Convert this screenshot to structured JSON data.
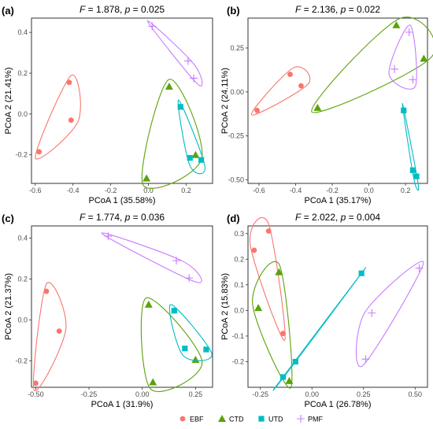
{
  "colors": {
    "EBF": "#F8766D",
    "CTD": "#5BA20A",
    "UTD": "#00BCC4",
    "PMF": "#C77CFF"
  },
  "legend": [
    {
      "group": "EBF",
      "label": "EBF",
      "shape": "circle"
    },
    {
      "group": "CTD",
      "label": "CTD",
      "shape": "triangle"
    },
    {
      "group": "UTD",
      "label": "UTD",
      "shape": "square"
    },
    {
      "group": "PMF",
      "label": "PMF",
      "shape": "plus"
    }
  ],
  "chart_data": [
    {
      "type": "scatter",
      "id": "a",
      "panel_label": "(a)",
      "title_F": "1.878",
      "title_p": "0.025",
      "xlabel": "PCoA 1 (35.58%)",
      "ylabel": "PCoA 2 (21.41%)",
      "xlim": [
        -0.62,
        0.34
      ],
      "ylim": [
        -0.34,
        0.47
      ],
      "xticks": [
        -0.6,
        -0.4,
        -0.2,
        0.0,
        0.2
      ],
      "xtick_labels": [
        "-0.6",
        "-0.4",
        "-0.2",
        "0.0",
        "0.2"
      ],
      "yticks": [
        -0.2,
        0.0,
        0.2,
        0.4
      ],
      "ytick_labels": [
        "-0.2",
        "0.0",
        "0.2",
        "0.4"
      ],
      "series": [
        {
          "name": "EBF",
          "points": [
            [
              -0.58,
              -0.185
            ],
            [
              -0.42,
              0.155
            ],
            [
              -0.41,
              -0.03
            ]
          ]
        },
        {
          "name": "CTD",
          "points": [
            [
              -0.01,
              -0.315
            ],
            [
              0.11,
              0.135
            ],
            [
              0.25,
              -0.2
            ]
          ]
        },
        {
          "name": "UTD",
          "points": [
            [
              0.17,
              0.035
            ],
            [
              0.22,
              -0.215
            ],
            [
              0.28,
              -0.225
            ]
          ]
        },
        {
          "name": "PMF",
          "points": [
            [
              0.02,
              0.43
            ],
            [
              0.21,
              0.26
            ],
            [
              0.24,
              0.175
            ]
          ]
        }
      ]
    },
    {
      "type": "scatter",
      "id": "b",
      "panel_label": "(b)",
      "title_F": "2.136",
      "title_p": "0.022",
      "xlabel": "PCoA 1 (35.17%)",
      "ylabel": "PCoA 2 (24.11%)",
      "xlim": [
        -0.66,
        0.32
      ],
      "ylim": [
        -0.52,
        0.42
      ],
      "xticks": [
        -0.6,
        -0.4,
        -0.2,
        0.0,
        0.2
      ],
      "xtick_labels": [
        "-0.6",
        "-0.4",
        "-0.2",
        "0.0",
        "0.2"
      ],
      "yticks": [
        -0.5,
        -0.25,
        0.0,
        0.25
      ],
      "ytick_labels": [
        "-0.50",
        "-0.25",
        "0.00",
        "0.25"
      ],
      "series": [
        {
          "name": "EBF",
          "points": [
            [
              -0.61,
              -0.105
            ],
            [
              -0.43,
              0.1
            ],
            [
              -0.37,
              0.035
            ]
          ]
        },
        {
          "name": "CTD",
          "points": [
            [
              -0.28,
              -0.09
            ],
            [
              0.15,
              0.38
            ],
            [
              0.3,
              0.19
            ]
          ]
        },
        {
          "name": "UTD",
          "points": [
            [
              0.19,
              -0.105
            ],
            [
              0.24,
              -0.445
            ],
            [
              0.26,
              -0.48
            ]
          ]
        },
        {
          "name": "PMF",
          "points": [
            [
              0.14,
              0.13
            ],
            [
              0.22,
              0.34
            ],
            [
              0.24,
              0.07
            ]
          ]
        }
      ]
    },
    {
      "type": "scatter",
      "id": "c",
      "panel_label": "(c)",
      "title_F": "1.774",
      "title_p": "0.036",
      "xlabel": "PCoA 1 (31.9%)",
      "ylabel": "PCoA 2 (21.37%)",
      "xlim": [
        -0.52,
        0.33
      ],
      "ylim": [
        -0.33,
        0.46
      ],
      "xticks": [
        -0.5,
        -0.25,
        0.0,
        0.25
      ],
      "xtick_labels": [
        "-0.50",
        "-0.25",
        "0.00",
        "0.25"
      ],
      "yticks": [
        -0.2,
        0.0,
        0.2,
        0.4
      ],
      "ytick_labels": [
        "-0.2",
        "0.0",
        "0.2",
        "0.4"
      ],
      "series": [
        {
          "name": "EBF",
          "points": [
            [
              -0.5,
              -0.31
            ],
            [
              -0.45,
              0.14
            ],
            [
              -0.39,
              -0.055
            ]
          ]
        },
        {
          "name": "CTD",
          "points": [
            [
              0.03,
              0.075
            ],
            [
              0.05,
              -0.305
            ],
            [
              0.25,
              -0.195
            ]
          ]
        },
        {
          "name": "UTD",
          "points": [
            [
              0.15,
              0.045
            ],
            [
              0.2,
              -0.14
            ],
            [
              0.3,
              -0.145
            ]
          ]
        },
        {
          "name": "PMF",
          "points": [
            [
              -0.16,
              0.41
            ],
            [
              0.16,
              0.29
            ],
            [
              0.22,
              0.205
            ]
          ]
        }
      ]
    },
    {
      "type": "scatter",
      "id": "d",
      "panel_label": "(d)",
      "title_F": "2.022",
      "title_p": "0.004",
      "xlabel": "PCoA 1 (26.78%)",
      "ylabel": "PCoA 2 (15.83%)",
      "xlim": [
        -0.31,
        0.56
      ],
      "ylim": [
        -0.3,
        0.33
      ],
      "xticks": [
        -0.25,
        0.0,
        0.25,
        0.5
      ],
      "xtick_labels": [
        "-0.25",
        "0.00",
        "0.25",
        "0.50"
      ],
      "yticks": [
        -0.2,
        -0.1,
        0.0,
        0.1,
        0.2,
        0.3
      ],
      "ytick_labels": [
        "-0.2",
        "-0.1",
        "0.0",
        "0.1",
        "0.2",
        "0.3"
      ],
      "series": [
        {
          "name": "EBF",
          "points": [
            [
              -0.28,
              0.235
            ],
            [
              -0.21,
              0.31
            ],
            [
              -0.14,
              -0.09
            ]
          ]
        },
        {
          "name": "CTD",
          "points": [
            [
              -0.26,
              0.01
            ],
            [
              -0.16,
              0.15
            ],
            [
              -0.11,
              -0.275
            ]
          ]
        },
        {
          "name": "UTD",
          "points": [
            [
              -0.14,
              -0.26
            ],
            [
              -0.08,
              -0.2
            ],
            [
              0.24,
              0.145
            ]
          ]
        },
        {
          "name": "PMF",
          "points": [
            [
              0.26,
              -0.19
            ],
            [
              0.29,
              -0.01
            ],
            [
              0.52,
              0.165
            ]
          ]
        }
      ]
    }
  ]
}
